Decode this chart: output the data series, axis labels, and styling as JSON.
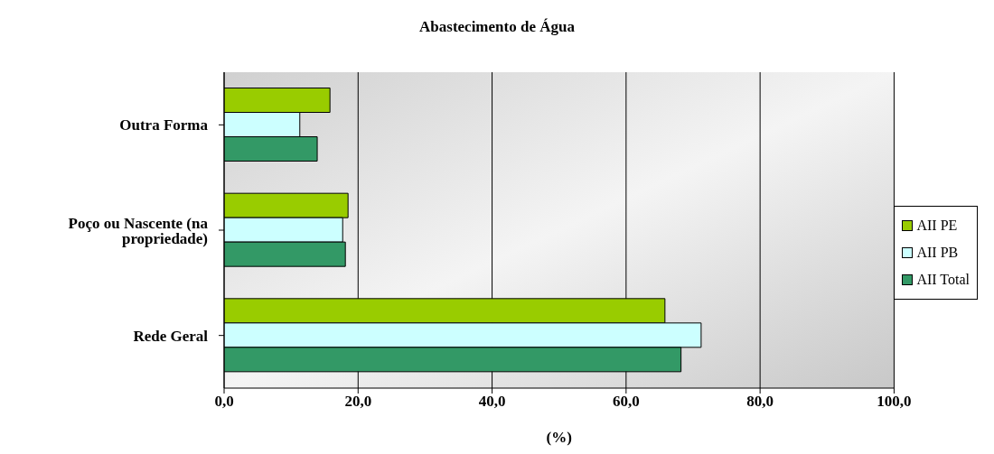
{
  "chart_data": {
    "type": "bar",
    "orientation": "horizontal",
    "title": "Abastecimento de Água",
    "xlabel": "(%)",
    "categories": [
      "Outra Forma",
      "Poço ou Nascente (na propriedade)",
      "Rede Geral"
    ],
    "series": [
      {
        "name": "AII PE",
        "color": "#99cc00",
        "values": [
          15.8,
          18.5,
          65.8
        ]
      },
      {
        "name": "AII PB",
        "color": "#ccffff",
        "values": [
          11.3,
          17.7,
          71.2
        ]
      },
      {
        "name": "AII Total",
        "color": "#339966",
        "values": [
          13.9,
          18.1,
          68.2
        ]
      }
    ],
    "xlim": [
      0,
      100
    ],
    "xticks": [
      {
        "value": 0,
        "label": "0,0"
      },
      {
        "value": 20,
        "label": "20,0"
      },
      {
        "value": 40,
        "label": "40,0"
      },
      {
        "value": 60,
        "label": "60,0"
      },
      {
        "value": 80,
        "label": "80,0"
      },
      {
        "value": 100,
        "label": "100,0"
      }
    ],
    "grid": "x",
    "legend": "right"
  }
}
